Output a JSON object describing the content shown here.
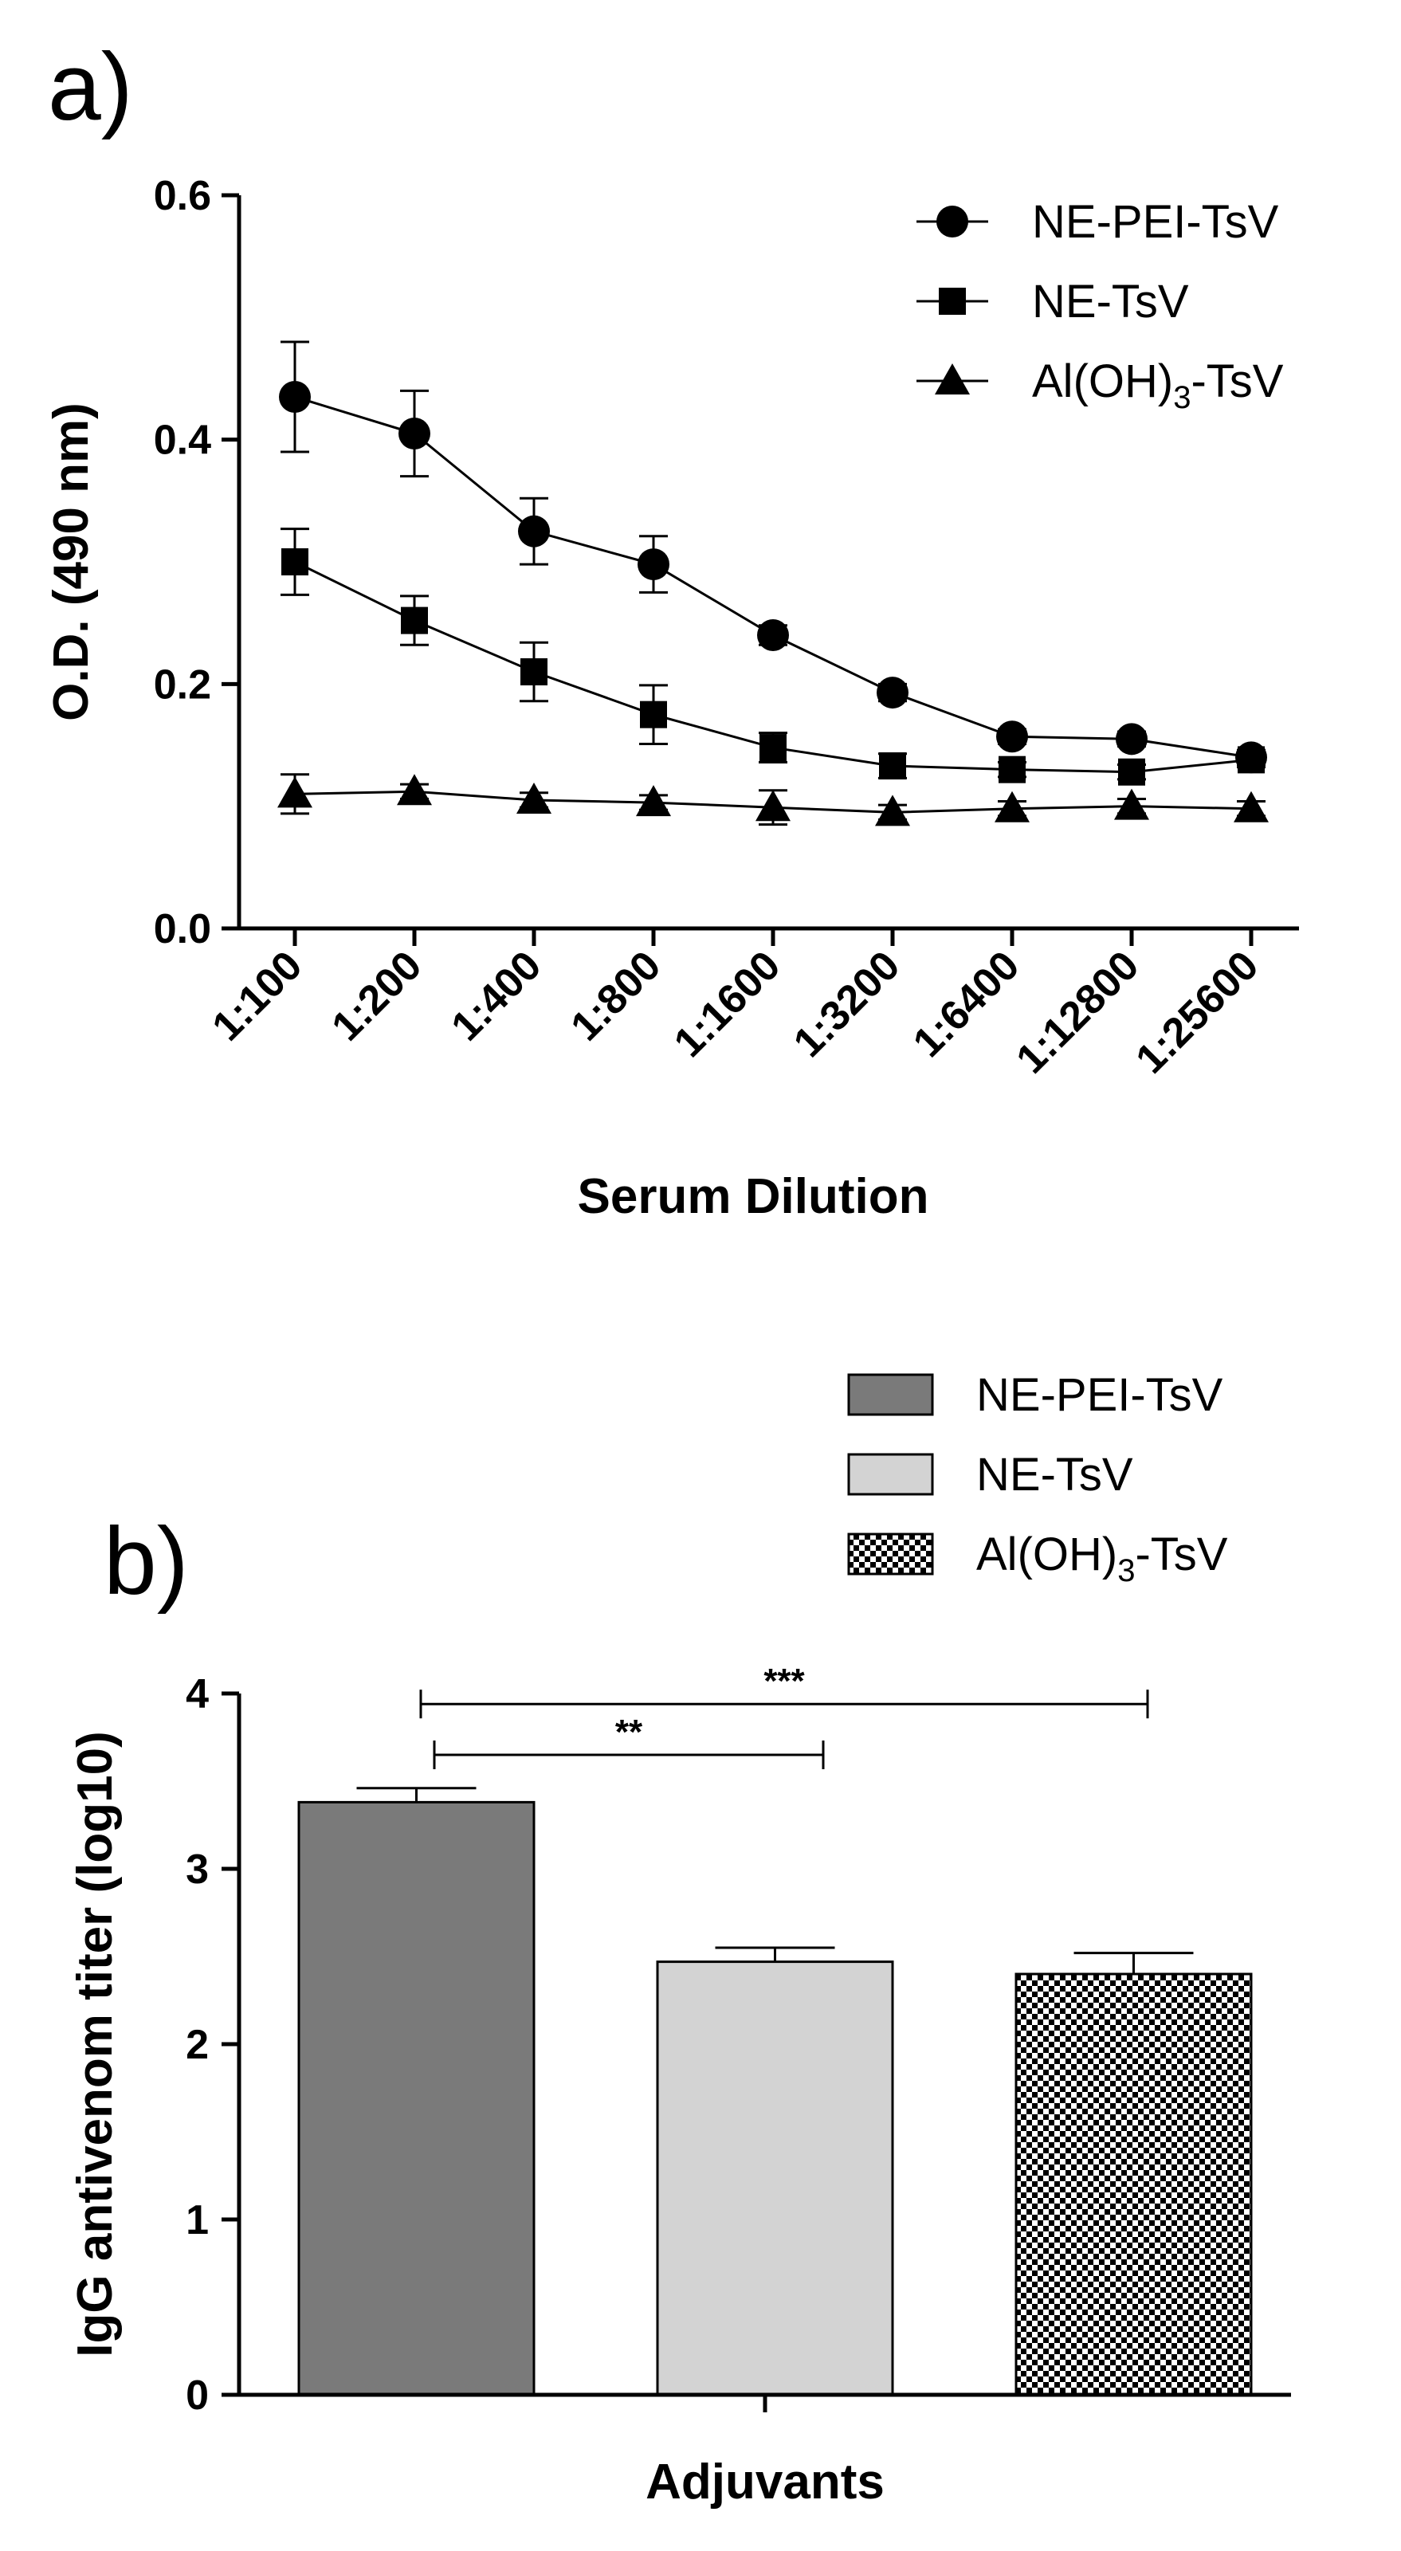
{
  "chart_data": [
    {
      "panel": "a)",
      "type": "line",
      "xlabel": "Serum Dilution",
      "ylabel": "O.D. (490 nm)",
      "ylim": [
        0,
        0.6
      ],
      "yticks": [
        "0.0",
        "0.2",
        "0.4",
        "0.6"
      ],
      "ytick_values": [
        0,
        0.2,
        0.4,
        0.6
      ],
      "categories": [
        "1:100",
        "1:200",
        "1:400",
        "1:800",
        "1:1600",
        "1:3200",
        "1:6400",
        "1:12800",
        "1:25600"
      ],
      "legend_position": "top-right",
      "series": [
        {
          "name": "NE-PEI-TsV",
          "name_parts": [
            "NE-PEI-TsV",
            "",
            ""
          ],
          "marker": "circle",
          "values": [
            0.435,
            0.405,
            0.325,
            0.298,
            0.24,
            0.193,
            0.157,
            0.155,
            0.14
          ],
          "errors": [
            0.045,
            0.035,
            0.027,
            0.023,
            0.008,
            0.007,
            0.006,
            0.006,
            0.006
          ]
        },
        {
          "name": "NE-TsV",
          "name_parts": [
            "NE-TsV",
            "",
            ""
          ],
          "marker": "square",
          "values": [
            0.3,
            0.252,
            0.21,
            0.175,
            0.148,
            0.133,
            0.13,
            0.128,
            0.138
          ],
          "errors": [
            0.027,
            0.02,
            0.024,
            0.024,
            0.012,
            0.01,
            0.006,
            0.006,
            0.006
          ]
        },
        {
          "name": "Al(OH)3-TsV",
          "name_parts": [
            "Al(OH)",
            "3",
            "-TsV"
          ],
          "marker": "triangle",
          "values": [
            0.11,
            0.112,
            0.105,
            0.103,
            0.099,
            0.095,
            0.098,
            0.1,
            0.098
          ],
          "errors": [
            0.016,
            0.006,
            0.006,
            0.006,
            0.014,
            0.006,
            0.006,
            0.006,
            0.006
          ]
        }
      ]
    },
    {
      "panel": "b)",
      "type": "bar",
      "xlabel": "Adjuvants",
      "ylabel": "IgG antivenom titer (log10)",
      "ylim": [
        0,
        4
      ],
      "yticks": [
        "0",
        "1",
        "2",
        "3",
        "4"
      ],
      "ytick_values": [
        0,
        1,
        2,
        3,
        4
      ],
      "legend_position": "top-right",
      "categories": [
        "NE-PEI-TsV",
        "NE-TsV",
        "Al(OH)3-TsV"
      ],
      "bars": [
        {
          "name": "NE-PEI-TsV",
          "name_parts": [
            "NE-PEI-TsV",
            "",
            ""
          ],
          "value": 3.38,
          "error": 0.08,
          "fill": "#7a7a7a",
          "pattern": "solid"
        },
        {
          "name": "NE-TsV",
          "name_parts": [
            "NE-TsV",
            "",
            ""
          ],
          "value": 2.47,
          "error": 0.08,
          "fill": "#d3d3d3",
          "pattern": "solid"
        },
        {
          "name": "Al(OH)3-TsV",
          "name_parts": [
            "Al(OH)",
            "3",
            "-TsV"
          ],
          "value": 2.4,
          "error": 0.12,
          "fill": "#000000",
          "pattern": "checker"
        }
      ],
      "significance": [
        {
          "label": "***",
          "from": 0,
          "to": 2,
          "level": 3.94
        },
        {
          "label": "**",
          "from": 0,
          "to": 1,
          "level": 3.65
        }
      ]
    }
  ]
}
